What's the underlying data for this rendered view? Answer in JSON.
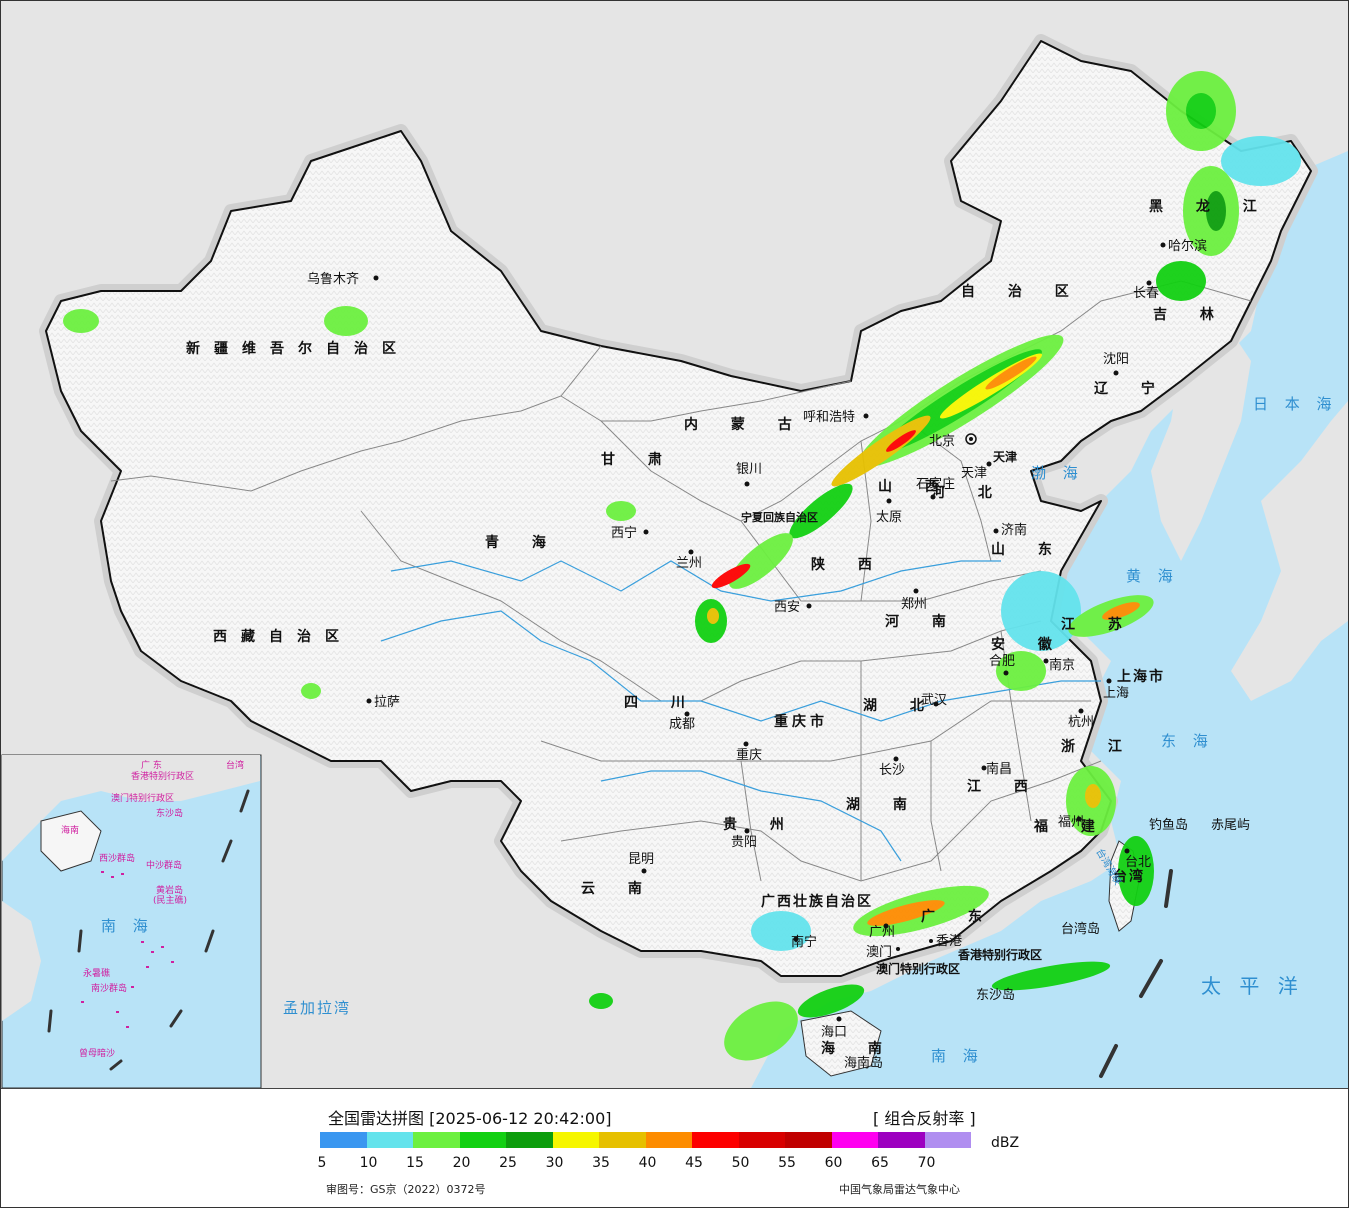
{
  "map": {
    "colors": {
      "sea": "#b8e3f7",
      "foreign_land": "#e5e5e5",
      "china_land": "#f6f6f6",
      "halo": "#cfcfcf",
      "river": "#3a9fdc",
      "border": "#111111"
    },
    "provinces": [
      {
        "id": "xinjiang",
        "label": "新疆维吾尔自治区"
      },
      {
        "id": "xizang",
        "label": "西藏自治区"
      },
      {
        "id": "qinghai",
        "label": "青 海"
      },
      {
        "id": "gansu",
        "label": "甘 肃"
      },
      {
        "id": "neimenggu",
        "label": "内 蒙 古"
      },
      {
        "id": "nmg2",
        "label": "自 治 区"
      },
      {
        "id": "heilongjiang",
        "label": "黑 龙 江"
      },
      {
        "id": "jilin",
        "label": "吉 林"
      },
      {
        "id": "liaoning",
        "label": "辽 宁"
      },
      {
        "id": "hebei",
        "label": "河 北"
      },
      {
        "id": "shanxi",
        "label": "山 西"
      },
      {
        "id": "shandong",
        "label": "山 东"
      },
      {
        "id": "henan",
        "label": "河 南"
      },
      {
        "id": "shaanxi",
        "label": "陕 西"
      },
      {
        "id": "sichuan",
        "label": "四 川"
      },
      {
        "id": "chongqing",
        "label": "重庆市"
      },
      {
        "id": "hubei",
        "label": "湖 北"
      },
      {
        "id": "hunan",
        "label": "湖 南"
      },
      {
        "id": "jiangxi",
        "label": "江 西"
      },
      {
        "id": "anhui",
        "label": "安 徽"
      },
      {
        "id": "jiangsu",
        "label": "江 苏"
      },
      {
        "id": "zhejiang",
        "label": "浙 江"
      },
      {
        "id": "fujian",
        "label": "福 建"
      },
      {
        "id": "guangdong",
        "label": "广 东"
      },
      {
        "id": "guangxi",
        "label": "广西壮族自治区"
      },
      {
        "id": "guizhou",
        "label": "贵 州"
      },
      {
        "id": "yunnan",
        "label": "云 南"
      },
      {
        "id": "hainan",
        "label": "海 南"
      },
      {
        "id": "ningxia",
        "label": "宁夏回族自治区"
      },
      {
        "id": "shanghai",
        "label": "上海市"
      },
      {
        "id": "tianjin",
        "label": "天津"
      },
      {
        "id": "taiwan",
        "label": "台湾"
      },
      {
        "id": "hk",
        "label": "香港特别行政区"
      },
      {
        "id": "macau",
        "label": "澳门特别行政区"
      }
    ],
    "cities": [
      {
        "id": "urumqi",
        "label": "乌鲁木齐"
      },
      {
        "id": "lhasa",
        "label": "拉萨"
      },
      {
        "id": "xining",
        "label": "西宁"
      },
      {
        "id": "lanzhou",
        "label": "兰州"
      },
      {
        "id": "yinchuan",
        "label": "银川"
      },
      {
        "id": "huhehaote",
        "label": "呼和浩特"
      },
      {
        "id": "beijing",
        "label": "北京"
      },
      {
        "id": "tianjin_c",
        "label": "天津"
      },
      {
        "id": "shijiazhuang",
        "label": "石家庄"
      },
      {
        "id": "taiyuan",
        "label": "太原"
      },
      {
        "id": "jinan",
        "label": "济南"
      },
      {
        "id": "zhengzhou",
        "label": "郑州"
      },
      {
        "id": "xian",
        "label": "西安"
      },
      {
        "id": "chengdu",
        "label": "成都"
      },
      {
        "id": "chongqing_c",
        "label": "重庆"
      },
      {
        "id": "wuhan",
        "label": "武汉"
      },
      {
        "id": "changsha",
        "label": "长沙"
      },
      {
        "id": "nanchang",
        "label": "南昌"
      },
      {
        "id": "hefei",
        "label": "合肥"
      },
      {
        "id": "nanjing",
        "label": "南京"
      },
      {
        "id": "shanghai_c",
        "label": "上海"
      },
      {
        "id": "hangzhou",
        "label": "杭州"
      },
      {
        "id": "fuzhou",
        "label": "福州"
      },
      {
        "id": "guangzhou",
        "label": "广州"
      },
      {
        "id": "nanning",
        "label": "南宁"
      },
      {
        "id": "guiyang",
        "label": "贵阳"
      },
      {
        "id": "kunming",
        "label": "昆明"
      },
      {
        "id": "haikou",
        "label": "海口"
      },
      {
        "id": "harbin",
        "label": "哈尔滨"
      },
      {
        "id": "changchun",
        "label": "长春"
      },
      {
        "id": "shenyang",
        "label": "沈阳"
      },
      {
        "id": "taibei",
        "label": "台北"
      },
      {
        "id": "hk_c",
        "label": "香港"
      },
      {
        "id": "macau_c",
        "label": "澳门"
      }
    ],
    "seas": [
      {
        "id": "bohai",
        "label": "渤 海"
      },
      {
        "id": "huanghai",
        "label": "黄 海"
      },
      {
        "id": "donghai",
        "label": "东 海"
      },
      {
        "id": "nanhai",
        "label": "南 海"
      },
      {
        "id": "ribenhai",
        "label": "日 本 海"
      },
      {
        "id": "taipingyang",
        "label": "太 平 洋"
      },
      {
        "id": "mengjialawan",
        "label": "孟加拉湾"
      },
      {
        "id": "taiwanhaixia",
        "label": "台湾海峡"
      }
    ],
    "islands": [
      {
        "id": "diaoyudao",
        "label": "钓鱼岛"
      },
      {
        "id": "chiweiyu",
        "label": "赤尾屿"
      },
      {
        "id": "taiwandao",
        "label": "台湾岛"
      },
      {
        "id": "dongshadao",
        "label": "东沙岛"
      },
      {
        "id": "hainandao",
        "label": "海南岛"
      }
    ],
    "inset": {
      "labels": [
        {
          "id": "ins_nanhai",
          "label": "南 海"
        },
        {
          "id": "ins_zhongsha",
          "label": "中沙群岛"
        },
        {
          "id": "ins_huangyan",
          "label": "黄岩岛"
        },
        {
          "id": "ins_minzhu",
          "label": "(民主礁)"
        },
        {
          "id": "ins_xisha",
          "label": "西沙群岛"
        },
        {
          "id": "ins_dongsha",
          "label": "东沙岛"
        },
        {
          "id": "ins_nansha",
          "label": "南沙群岛"
        },
        {
          "id": "ins_yongshu",
          "label": "永暑礁"
        },
        {
          "id": "ins_zengmu",
          "label": "曾母暗沙"
        },
        {
          "id": "ins_hainan",
          "label": "海南"
        },
        {
          "id": "ins_taiwan",
          "label": "台湾"
        },
        {
          "id": "ins_guangdong",
          "label": "广 东"
        },
        {
          "id": "ins_hk",
          "label": "香港特别行政区"
        },
        {
          "id": "ins_macau",
          "label": "澳门特别行政区"
        }
      ]
    }
  },
  "legend": {
    "title": "全国雷达拼图 [2025-06-12 20:42:00]",
    "product": "[ 组合反射率 ]",
    "unit": "dBZ",
    "scale_colors": [
      "#3a97f0",
      "#64e3ec",
      "#6cf040",
      "#12d012",
      "#0c9d0c",
      "#f6f600",
      "#e6c000",
      "#fd8c00",
      "#fd0000",
      "#d80000",
      "#c00000",
      "#ff00f0",
      "#9d00c0",
      "#b08ef0"
    ],
    "ticks": [
      "5",
      "10",
      "15",
      "20",
      "25",
      "30",
      "35",
      "40",
      "45",
      "50",
      "55",
      "60",
      "65",
      "70"
    ],
    "review_no": "审图号：GS京（2022）0372号",
    "source": "中国气象局雷达气象中心"
  }
}
